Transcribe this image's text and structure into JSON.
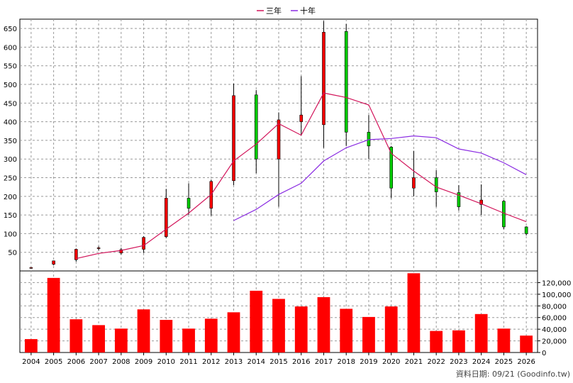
{
  "chart_data": {
    "type": "candlestick",
    "categories": [
      "2004",
      "2005",
      "2006",
      "2007",
      "2008",
      "2009",
      "2010",
      "2011",
      "2012",
      "2013",
      "2014",
      "2015",
      "2016",
      "2017",
      "2018",
      "2019",
      "2020",
      "2021",
      "2022",
      "2023",
      "2024",
      "2025",
      "2026"
    ],
    "price": {
      "ylim": [
        0,
        675
      ],
      "ticks": [
        50,
        100,
        150,
        200,
        250,
        300,
        350,
        400,
        450,
        500,
        550,
        600,
        650
      ],
      "ohlc": [
        {
          "open": 8,
          "high": 10,
          "low": 6,
          "close": 9
        },
        {
          "open": 18,
          "high": 28,
          "low": 15,
          "close": 27
        },
        {
          "open": 30,
          "high": 60,
          "low": 25,
          "close": 58
        },
        {
          "open": 60,
          "high": 66,
          "low": 55,
          "close": 62
        },
        {
          "open": 48,
          "high": 62,
          "low": 44,
          "close": 57
        },
        {
          "open": 58,
          "high": 93,
          "low": 48,
          "close": 90
        },
        {
          "open": 92,
          "high": 220,
          "low": 88,
          "close": 195
        },
        {
          "open": 195,
          "high": 235,
          "low": 150,
          "close": 168
        },
        {
          "open": 168,
          "high": 245,
          "low": 148,
          "close": 240
        },
        {
          "open": 242,
          "high": 502,
          "low": 230,
          "close": 470
        },
        {
          "open": 472,
          "high": 485,
          "low": 262,
          "close": 300
        },
        {
          "open": 300,
          "high": 425,
          "low": 172,
          "close": 405
        },
        {
          "open": 400,
          "high": 522,
          "low": 365,
          "close": 418
        },
        {
          "open": 392,
          "high": 670,
          "low": 330,
          "close": 640
        },
        {
          "open": 642,
          "high": 662,
          "low": 335,
          "close": 372
        },
        {
          "open": 372,
          "high": 418,
          "low": 300,
          "close": 335
        },
        {
          "open": 332,
          "high": 335,
          "low": 195,
          "close": 222
        },
        {
          "open": 222,
          "high": 322,
          "low": 200,
          "close": 250
        },
        {
          "open": 250,
          "high": 270,
          "low": 172,
          "close": 212
        },
        {
          "open": 210,
          "high": 230,
          "low": 162,
          "close": 172
        },
        {
          "open": 178,
          "high": 232,
          "low": 150,
          "close": 190
        },
        {
          "open": 187,
          "high": 190,
          "low": 112,
          "close": 118
        },
        {
          "open": 118,
          "high": 120,
          "low": 95,
          "close": 100
        }
      ],
      "series": [
        {
          "name": "三年",
          "color": "#d2145a",
          "values": [
            null,
            null,
            33,
            47,
            55,
            68,
            112,
            155,
            205,
            295,
            340,
            395,
            364,
            477,
            465,
            445,
            315,
            268,
            225,
            203,
            180,
            155,
            132
          ]
        },
        {
          "name": "十年",
          "color": "#8a2be2",
          "values": [
            null,
            null,
            null,
            null,
            null,
            null,
            null,
            null,
            null,
            135,
            165,
            205,
            235,
            295,
            330,
            352,
            355,
            362,
            357,
            327,
            316,
            290,
            258
          ]
        }
      ]
    },
    "volume": {
      "ylim": [
        0,
        140000
      ],
      "ticks": [
        0,
        20000,
        40000,
        60000,
        80000,
        100000,
        120000
      ],
      "tick_labels": [
        "0",
        "20,000",
        "40,000",
        "60,000",
        "80,000",
        "100,000",
        "120,000"
      ],
      "values": [
        23000,
        128000,
        57000,
        47000,
        41000,
        74000,
        56000,
        41000,
        58000,
        69000,
        106000,
        92000,
        79000,
        95000,
        75000,
        61000,
        79000,
        136000,
        37000,
        38000,
        66000,
        41000,
        29000
      ],
      "color": "#ff0000"
    },
    "up_color": "#ff0000",
    "down_color": "#00cc00",
    "grid": true,
    "legend_position": "top-center"
  },
  "credit": "資料日期: 09/21  (Goodinfo.tw)"
}
